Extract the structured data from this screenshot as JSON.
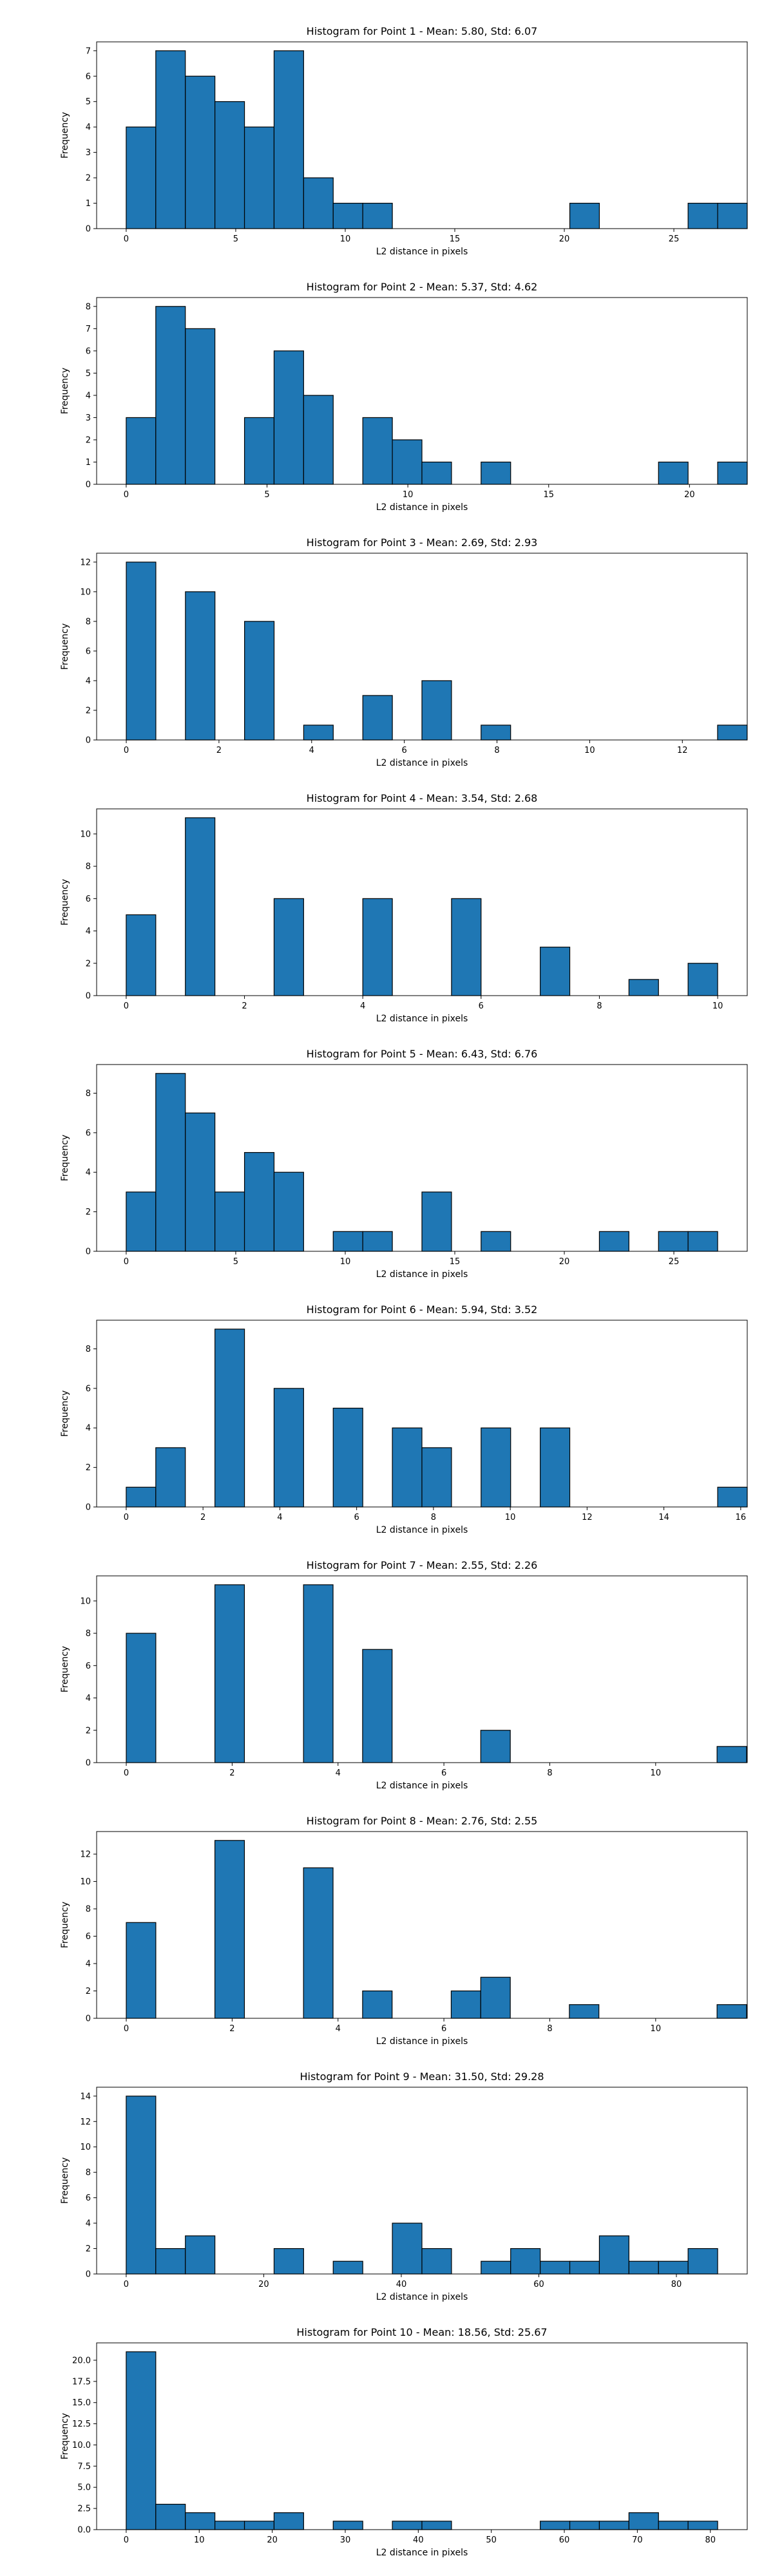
{
  "chart_data": [
    {
      "type": "bar",
      "title": "Histogram for Point 1 - Mean: 5.80, Std: 6.07",
      "xlabel": "L2 distance in pixels",
      "ylabel": "Frequency",
      "xlim": [
        -1.35,
        28.35
      ],
      "ylim": [
        0,
        7.35
      ],
      "xticks": [
        0,
        5,
        10,
        15,
        20,
        25
      ],
      "yticks": [
        0,
        1,
        2,
        3,
        4,
        5,
        6,
        7
      ],
      "bin_start": 0,
      "bin_width": 1.35,
      "counts": [
        4,
        7,
        6,
        5,
        4,
        7,
        2,
        1,
        1,
        0,
        0,
        0,
        0,
        0,
        0,
        1,
        0,
        0,
        0,
        1,
        1
      ]
    },
    {
      "type": "bar",
      "title": "Histogram for Point 2 - Mean: 5.37, Std: 4.62",
      "xlabel": "L2 distance in pixels",
      "ylabel": "Frequency",
      "xlim": [
        -1.05,
        22.05
      ],
      "ylim": [
        0,
        8.4
      ],
      "xticks": [
        0,
        5,
        10,
        15,
        20
      ],
      "yticks": [
        0,
        1,
        2,
        3,
        4,
        5,
        6,
        7,
        8
      ],
      "bin_start": 0,
      "bin_width": 1.05,
      "counts": [
        3,
        8,
        7,
        0,
        3,
        6,
        4,
        0,
        3,
        2,
        1,
        0,
        1,
        0,
        0,
        0,
        0,
        0,
        1,
        0,
        1
      ]
    },
    {
      "type": "bar",
      "title": "Histogram for Point 3 - Mean: 2.69, Std: 2.93",
      "xlabel": "L2 distance in pixels",
      "ylabel": "Frequency",
      "xlim": [
        -0.64,
        13.4
      ],
      "ylim": [
        0,
        12.6
      ],
      "xticks": [
        0,
        2,
        4,
        6,
        8,
        10,
        12
      ],
      "yticks": [
        0,
        2,
        4,
        6,
        8,
        10,
        12
      ],
      "bin_start": 0,
      "bin_width": 0.638,
      "counts": [
        12,
        0,
        10,
        0,
        8,
        0,
        1,
        0,
        3,
        0,
        4,
        0,
        1,
        0,
        0,
        0,
        0,
        0,
        0,
        0,
        1
      ]
    },
    {
      "type": "bar",
      "title": "Histogram for Point 4 - Mean: 3.54, Std: 2.68",
      "xlabel": "L2 distance in pixels",
      "ylabel": "Frequency",
      "xlim": [
        -0.5,
        10.5
      ],
      "ylim": [
        0,
        11.55
      ],
      "xticks": [
        0,
        2,
        4,
        6,
        8,
        10
      ],
      "yticks": [
        0,
        2,
        4,
        6,
        8,
        10
      ],
      "bin_start": 0,
      "bin_width": 0.5,
      "counts": [
        5,
        0,
        11,
        0,
        0,
        6,
        0,
        0,
        6,
        0,
        0,
        6,
        0,
        0,
        3,
        0,
        0,
        1,
        0,
        2
      ]
    },
    {
      "type": "bar",
      "title": "Histogram for Point 5 - Mean: 6.43, Std: 6.76",
      "xlabel": "L2 distance in pixels",
      "ylabel": "Frequency",
      "xlim": [
        -1.35,
        28.35
      ],
      "ylim": [
        0,
        9.45
      ],
      "xticks": [
        0,
        5,
        10,
        15,
        20,
        25
      ],
      "yticks": [
        0,
        2,
        4,
        6,
        8
      ],
      "bin_start": 0,
      "bin_width": 1.35,
      "counts": [
        3,
        9,
        7,
        3,
        5,
        4,
        0,
        1,
        1,
        0,
        3,
        0,
        1,
        0,
        0,
        0,
        1,
        0,
        1,
        1
      ]
    },
    {
      "type": "bar",
      "title": "Histogram for Point 6 - Mean: 5.94, Std: 3.52",
      "xlabel": "L2 distance in pixels",
      "ylabel": "Frequency",
      "xlim": [
        -0.77,
        16.17
      ],
      "ylim": [
        0,
        9.45
      ],
      "xticks": [
        0,
        2,
        4,
        6,
        8,
        10,
        12,
        14,
        16
      ],
      "yticks": [
        0,
        2,
        4,
        6,
        8
      ],
      "bin_start": 0,
      "bin_width": 0.77,
      "counts": [
        1,
        3,
        0,
        9,
        0,
        6,
        0,
        5,
        0,
        4,
        3,
        0,
        4,
        0,
        4,
        0,
        0,
        0,
        0,
        0,
        1
      ]
    },
    {
      "type": "bar",
      "title": "Histogram for Point 7 - Mean: 2.55, Std: 2.26",
      "xlabel": "L2 distance in pixels",
      "ylabel": "Frequency",
      "xlim": [
        -0.56,
        11.73
      ],
      "ylim": [
        0,
        11.55
      ],
      "xticks": [
        0,
        2,
        4,
        6,
        8,
        10
      ],
      "yticks": [
        0,
        2,
        4,
        6,
        8,
        10
      ],
      "bin_start": 0,
      "bin_width": 0.558,
      "counts": [
        8,
        0,
        0,
        11,
        0,
        0,
        11,
        0,
        7,
        0,
        0,
        0,
        2,
        0,
        0,
        0,
        0,
        0,
        0,
        0,
        1
      ]
    },
    {
      "type": "bar",
      "title": "Histogram for Point 8 - Mean: 2.76, Std: 2.55",
      "xlabel": "L2 distance in pixels",
      "ylabel": "Frequency",
      "xlim": [
        -0.56,
        11.73
      ],
      "ylim": [
        0,
        13.65
      ],
      "xticks": [
        0,
        2,
        4,
        6,
        8,
        10
      ],
      "yticks": [
        0,
        2,
        4,
        6,
        8,
        10,
        12
      ],
      "bin_start": 0,
      "bin_width": 0.558,
      "counts": [
        7,
        0,
        0,
        13,
        0,
        0,
        11,
        0,
        2,
        0,
        0,
        2,
        3,
        0,
        0,
        1,
        0,
        0,
        0,
        0,
        1
      ]
    },
    {
      "type": "bar",
      "title": "Histogram for Point 9 - Mean: 31.50, Std: 29.28",
      "xlabel": "L2 distance in pixels",
      "ylabel": "Frequency",
      "xlim": [
        -4.3,
        90.3
      ],
      "ylim": [
        0,
        14.7
      ],
      "xticks": [
        0,
        20,
        40,
        60,
        80
      ],
      "yticks": [
        0,
        2,
        4,
        6,
        8,
        10,
        12,
        14
      ],
      "bin_start": 0,
      "bin_width": 4.3,
      "counts": [
        14,
        2,
        3,
        0,
        0,
        2,
        0,
        1,
        0,
        4,
        2,
        0,
        1,
        2,
        1,
        1,
        3,
        1,
        1,
        2
      ]
    },
    {
      "type": "bar",
      "title": "Histogram for Point 10 - Mean: 18.56, Std: 25.67",
      "xlabel": "L2 distance in pixels",
      "ylabel": "Frequency",
      "xlim": [
        -4.05,
        85.05
      ],
      "ylim": [
        0,
        22.05
      ],
      "xticks": [
        0,
        10,
        20,
        30,
        40,
        50,
        60,
        70,
        80
      ],
      "yticks": [
        0.0,
        2.5,
        5.0,
        7.5,
        10.0,
        12.5,
        15.0,
        17.5,
        20.0
      ],
      "ytick_format": "0.0",
      "bin_start": 0,
      "bin_width": 4.05,
      "counts": [
        21,
        3,
        2,
        1,
        1,
        2,
        0,
        1,
        0,
        1,
        1,
        0,
        0,
        0,
        1,
        1,
        1,
        2,
        1,
        1
      ]
    }
  ]
}
